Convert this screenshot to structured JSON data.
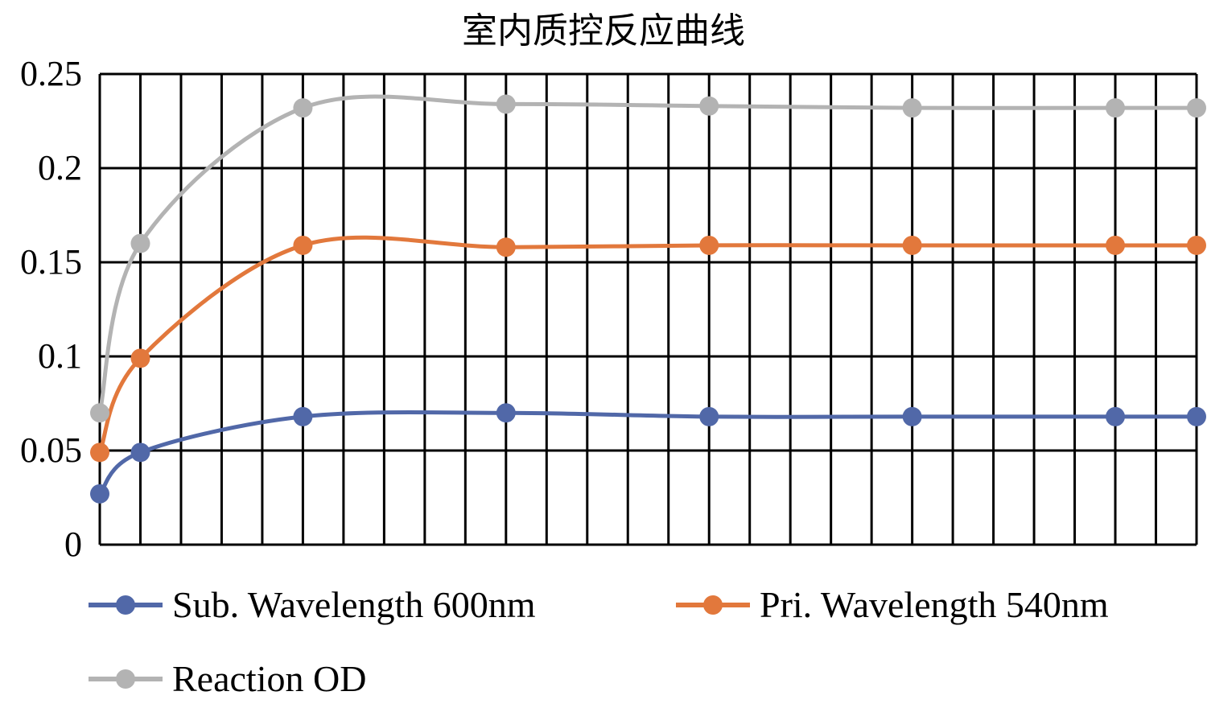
{
  "chart_data": {
    "type": "line",
    "title": "室内质控反应曲线",
    "xlabel": "",
    "ylabel": "",
    "ylim": [
      0,
      0.25
    ],
    "yticks": [
      "0",
      "0.05",
      "0.1",
      "0.15",
      "0.2",
      "0.25"
    ],
    "grid": true,
    "smooth": true,
    "legend_position": "bottom",
    "x": [
      0,
      1,
      5,
      10,
      15,
      20,
      25,
      27
    ],
    "xlim": [
      0,
      27
    ],
    "series": [
      {
        "name": "Sub. Wavelength 600nm",
        "color": "#5168a8",
        "values": [
          0.027,
          0.049,
          0.068,
          0.07,
          0.068,
          0.068,
          0.068,
          0.068
        ]
      },
      {
        "name": "Pri. Wavelength 540nm",
        "color": "#e2783c",
        "values": [
          0.049,
          0.099,
          0.159,
          0.158,
          0.159,
          0.159,
          0.159,
          0.159
        ]
      },
      {
        "name": "Reaction OD",
        "color": "#b3b3b3",
        "values": [
          0.07,
          0.16,
          0.232,
          0.234,
          0.233,
          0.232,
          0.232,
          0.232
        ]
      }
    ]
  }
}
